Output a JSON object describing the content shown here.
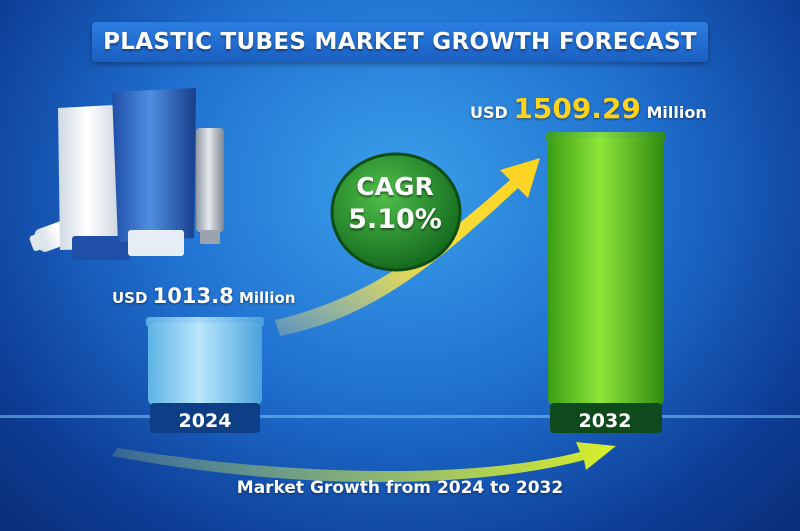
{
  "title": "PLASTIC TUBES MARKET GROWTH FORECAST",
  "cagr": {
    "label": "CAGR",
    "value": "5.10%"
  },
  "footer": "Market Growth from 2024 to 2032",
  "currency_prefix": "USD",
  "unit_suffix": "Million",
  "colors": {
    "bar_2024": "#8fd3f5",
    "bar_2032": "#5cc41f",
    "accent": "#ffd21e",
    "cagr_badge": "#1f8a2a"
  },
  "chart_data": {
    "type": "bar",
    "title": "PLASTIC TUBES MARKET GROWTH FORECAST",
    "categories": [
      "2024",
      "2032"
    ],
    "values": [
      1013.8,
      1509.29
    ],
    "value_labels": [
      "1013.8",
      "1509.29"
    ],
    "xlabel": "",
    "ylabel": "",
    "unit": "USD Million",
    "ylim": [
      0,
      1509.29
    ],
    "grid": false,
    "legend": "none"
  }
}
